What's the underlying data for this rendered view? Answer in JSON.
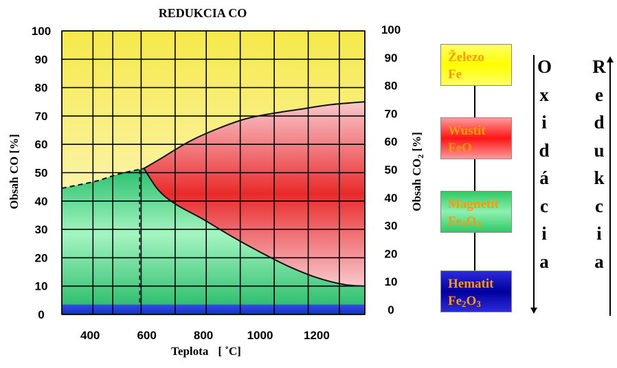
{
  "chart_data": {
    "type": "area",
    "title": "REDUKCIA CO",
    "xlabel": "Teplota",
    "xlabel_unit": "[ ˚C]",
    "ylabel": "Obsah CO [%]",
    "ylabel_right": "Obsah CO",
    "ylabel_right_sub": "2",
    "ylabel_right_unit": " [%]",
    "xlim": [
      300,
      1370
    ],
    "ylim": [
      0,
      100
    ],
    "x_ticks": [
      400,
      600,
      800,
      1000,
      1200
    ],
    "y_ticks": [
      0,
      10,
      20,
      30,
      40,
      50,
      60,
      70,
      80,
      90,
      100
    ],
    "y_ticks_right": [
      100,
      90,
      80,
      70,
      60,
      50,
      40,
      30,
      20,
      10,
      0
    ],
    "grid": true,
    "x_grid": [
      300,
      410,
      480,
      580,
      700,
      810,
      930,
      1050,
      1170,
      1280,
      1370
    ],
    "boundaries": [
      {
        "name": "fe3o4-fe",
        "points": [
          [
            300,
            44.5
          ],
          [
            420,
            47
          ],
          [
            500,
            49.5
          ],
          [
            590,
            51.5
          ]
        ],
        "style": "dashed"
      },
      {
        "name": "feo-fe",
        "points": [
          [
            590,
            51.5
          ],
          [
            650,
            55
          ],
          [
            750,
            61
          ],
          [
            850,
            65.5
          ],
          [
            950,
            69
          ],
          [
            1050,
            71
          ],
          [
            1150,
            72.5
          ],
          [
            1250,
            74
          ],
          [
            1370,
            75
          ]
        ],
        "style": "solid"
      },
      {
        "name": "fe3o4-feo",
        "points": [
          [
            590,
            51.5
          ],
          [
            640,
            44
          ],
          [
            700,
            39
          ],
          [
            800,
            33.5
          ],
          [
            900,
            27.5
          ],
          [
            1000,
            22
          ],
          [
            1100,
            17
          ],
          [
            1200,
            13
          ],
          [
            1300,
            10.5
          ],
          [
            1370,
            10
          ]
        ],
        "style": "solid"
      },
      {
        "name": "eutectoid",
        "points": [
          [
            575,
            51
          ],
          [
            575,
            4
          ]
        ],
        "style": "dashed"
      }
    ],
    "hematite_band": [
      0,
      3.5
    ],
    "colors": {
      "zelezo": "#f7e84a",
      "wustit": "#ee3b3b",
      "magnetit": "#38c774",
      "hematit": "#1e3fd2"
    }
  },
  "legend": {
    "stages": [
      {
        "name": "Železo",
        "formula_base": "Fe",
        "formula_parts": [
          [
            "Fe",
            ""
          ]
        ]
      },
      {
        "name": "Wustit",
        "formula_base": "FeO",
        "formula_parts": [
          [
            "FeO",
            ""
          ]
        ]
      },
      {
        "name": "Magnetit",
        "formula_base": "Fe3O4",
        "formula_parts": [
          [
            "Fe",
            "3"
          ],
          [
            "O",
            "4"
          ]
        ]
      },
      {
        "name": "Hematit",
        "formula_base": "Fe2O3",
        "formula_parts": [
          [
            "Fe",
            "2"
          ],
          [
            "O",
            "3"
          ]
        ]
      }
    ],
    "oxidacia_letters": [
      "O",
      "x",
      "i",
      "d",
      "á",
      "c",
      "i",
      "a"
    ],
    "redukcia_letters": [
      "R",
      "e",
      "d",
      "u",
      "k",
      "c",
      "i",
      "a"
    ]
  }
}
